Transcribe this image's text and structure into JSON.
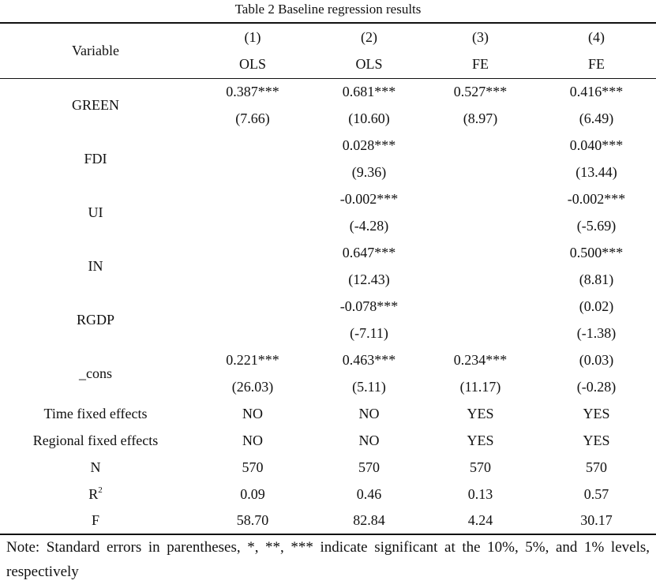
{
  "title": "Table 2 Baseline regression results",
  "header": {
    "variable": "Variable",
    "numbers": [
      "(1)",
      "(2)",
      "(3)",
      "(4)"
    ],
    "methods": [
      "OLS",
      "OLS",
      "FE",
      "FE"
    ]
  },
  "rows": [
    {
      "name": "GREEN",
      "coef": [
        "0.387***",
        "0.681***",
        "0.527***",
        "0.416***"
      ],
      "se": [
        "(7.66)",
        "(10.60)",
        "(8.97)",
        "(6.49)"
      ]
    },
    {
      "name": "FDI",
      "coef": [
        "",
        "0.028***",
        "",
        "0.040***"
      ],
      "se": [
        "",
        "(9.36)",
        "",
        "(13.44)"
      ]
    },
    {
      "name": "UI",
      "coef": [
        "",
        "-0.002***",
        "",
        "-0.002***"
      ],
      "se": [
        "",
        "(-4.28)",
        "",
        "(-5.69)"
      ]
    },
    {
      "name": "IN",
      "coef": [
        "",
        "0.647***",
        "",
        "0.500***"
      ],
      "se": [
        "",
        "(12.43)",
        "",
        "(8.81)"
      ]
    },
    {
      "name": "RGDP",
      "coef": [
        "",
        "-0.078***",
        "",
        "(0.02)"
      ],
      "se": [
        "",
        "(-7.11)",
        "",
        "(-1.38)"
      ]
    },
    {
      "name": "_cons",
      "coef": [
        "0.221***",
        "0.463***",
        "0.234***",
        "(0.03)"
      ],
      "se": [
        "(26.03)",
        "(5.11)",
        "(11.17)",
        "(-0.28)"
      ]
    }
  ],
  "stats": [
    {
      "name": "Time fixed effects",
      "values": [
        "NO",
        "NO",
        "YES",
        "YES"
      ]
    },
    {
      "name": "Regional fixed effects",
      "values": [
        "NO",
        "NO",
        "YES",
        "YES"
      ]
    },
    {
      "name": "N",
      "values": [
        "570",
        "570",
        "570",
        "570"
      ]
    },
    {
      "name": "R",
      "sup": "2",
      "values": [
        "0.09",
        "0.46",
        "0.13",
        "0.57"
      ]
    },
    {
      "name": "F",
      "values": [
        "58.70",
        "82.84",
        "4.24",
        "30.17"
      ]
    }
  ],
  "note": "Note: Standard errors in parentheses, *, **, *** indicate significant at the 10%, 5%, and 1% levels, respectively"
}
